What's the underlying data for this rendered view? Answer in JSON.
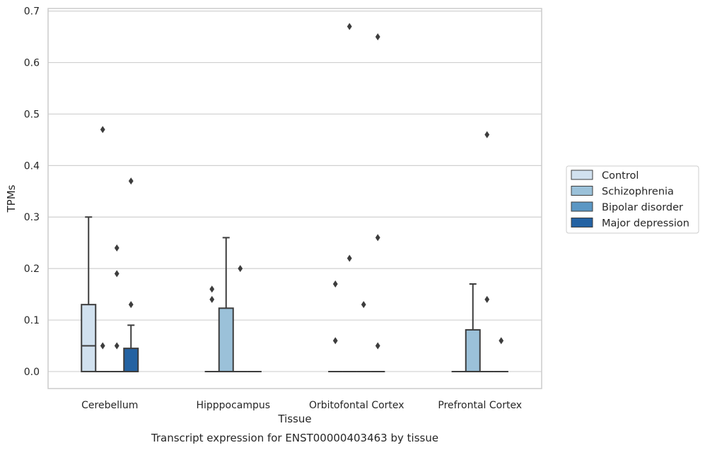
{
  "chart_data": {
    "type": "box",
    "xlabel": "Tissue",
    "ylabel": "TPMs",
    "caption": "Transcript expression for ENST00000403463 by tissue",
    "ylim": [
      -0.033,
      0.705
    ],
    "yticks": [
      0.0,
      0.1,
      0.2,
      0.3,
      0.4,
      0.5,
      0.6,
      0.7
    ],
    "ytick_labels": [
      "0.0",
      "0.1",
      "0.2",
      "0.3",
      "0.4",
      "0.5",
      "0.6",
      "0.7"
    ],
    "grid": true,
    "legend_position": "right",
    "categories": [
      "Cerebellum",
      "Hipppocampus",
      "Orbitofontal Cortex",
      "Prefrontal Cortex"
    ],
    "series": [
      {
        "name": "Control",
        "color": "#d1e1ef",
        "boxes": [
          {
            "q1": 0.0,
            "median": 0.05,
            "q3": 0.13,
            "whislo": 0.0,
            "whishi": 0.3,
            "fliers": []
          },
          {
            "q1": 0.0,
            "median": 0.0,
            "q3": 0.0,
            "whislo": 0.0,
            "whishi": 0.0,
            "fliers": [
              0.16,
              0.14
            ]
          },
          {
            "q1": 0.0,
            "median": 0.0,
            "q3": 0.0,
            "whislo": 0.0,
            "whishi": 0.0,
            "fliers": [
              0.17,
              0.06
            ]
          },
          {
            "q1": 0.0,
            "median": 0.0,
            "q3": 0.0,
            "whislo": 0.0,
            "whishi": 0.0,
            "fliers": []
          }
        ]
      },
      {
        "name": "Schizophrenia",
        "color": "#9bc1d9",
        "boxes": [
          {
            "q1": 0.0,
            "median": 0.0,
            "q3": 0.0,
            "whislo": 0.0,
            "whishi": 0.0,
            "fliers": [
              0.47,
              0.05
            ]
          },
          {
            "q1": 0.0,
            "median": 0.0,
            "q3": 0.123,
            "whislo": 0.0,
            "whishi": 0.26,
            "fliers": []
          },
          {
            "q1": 0.0,
            "median": 0.0,
            "q3": 0.0,
            "whislo": 0.0,
            "whishi": 0.0,
            "fliers": [
              0.67,
              0.22
            ]
          },
          {
            "q1": 0.0,
            "median": 0.0,
            "q3": 0.081,
            "whislo": 0.0,
            "whishi": 0.17,
            "fliers": []
          }
        ]
      },
      {
        "name": "Bipolar disorder",
        "color": "#5b97c4",
        "boxes": [
          {
            "q1": 0.0,
            "median": 0.0,
            "q3": 0.0,
            "whislo": 0.0,
            "whishi": 0.0,
            "fliers": [
              0.24,
              0.19,
              0.05
            ]
          },
          {
            "q1": 0.0,
            "median": 0.0,
            "q3": 0.0,
            "whislo": 0.0,
            "whishi": 0.0,
            "fliers": [
              0.2
            ]
          },
          {
            "q1": 0.0,
            "median": 0.0,
            "q3": 0.0,
            "whislo": 0.0,
            "whishi": 0.0,
            "fliers": [
              0.13
            ]
          },
          {
            "q1": 0.0,
            "median": 0.0,
            "q3": 0.0,
            "whislo": 0.0,
            "whishi": 0.0,
            "fliers": [
              0.46,
              0.14
            ]
          }
        ]
      },
      {
        "name": "Major depression",
        "color": "#2462a2",
        "boxes": [
          {
            "q1": 0.0,
            "median": 0.0,
            "q3": 0.045,
            "whislo": 0.0,
            "whishi": 0.09,
            "fliers": [
              0.37,
              0.13
            ]
          },
          {
            "q1": 0.0,
            "median": 0.0,
            "q3": 0.0,
            "whislo": 0.0,
            "whishi": 0.0,
            "fliers": []
          },
          {
            "q1": 0.0,
            "median": 0.0,
            "q3": 0.0,
            "whislo": 0.0,
            "whishi": 0.0,
            "fliers": [
              0.65,
              0.26,
              0.05
            ]
          },
          {
            "q1": 0.0,
            "median": 0.0,
            "q3": 0.0,
            "whislo": 0.0,
            "whishi": 0.0,
            "fliers": [
              0.06
            ]
          }
        ]
      }
    ]
  }
}
